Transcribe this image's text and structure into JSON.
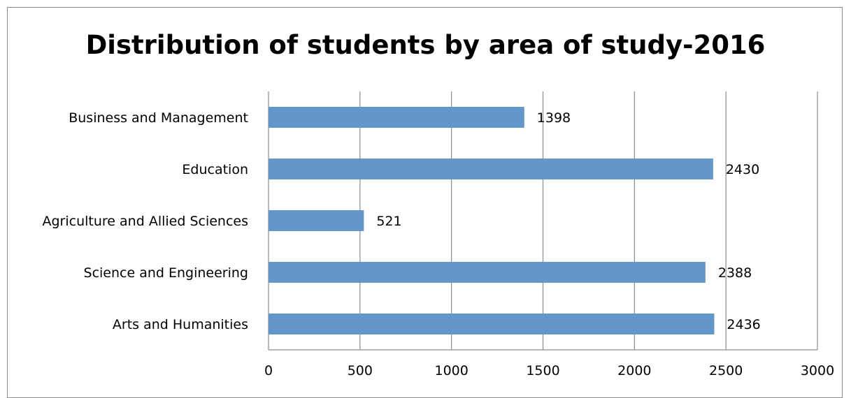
{
  "chart_data": {
    "type": "bar",
    "orientation": "horizontal",
    "title": "Distribution of students by area of study-2016",
    "xlabel": "",
    "ylabel": "",
    "categories": [
      "Business and Management",
      "Education",
      "Agriculture and Allied Sciences",
      "Science and Engineering",
      "Arts and Humanities"
    ],
    "values": [
      1398,
      2430,
      521,
      2388,
      2436
    ],
    "data_labels": [
      "1398",
      "2430",
      "521",
      "2388",
      "2436"
    ],
    "xlim": [
      0,
      3000
    ],
    "x_ticks": [
      "0",
      "500",
      "1000",
      "1500",
      "2000",
      "2500",
      "3000"
    ],
    "x_tick_values": [
      0,
      500,
      1000,
      1500,
      2000,
      2500,
      3000
    ],
    "grid": "vertical",
    "legend": "none",
    "bar_color": "#6497c9",
    "grid_color": "#8c8c8c"
  }
}
